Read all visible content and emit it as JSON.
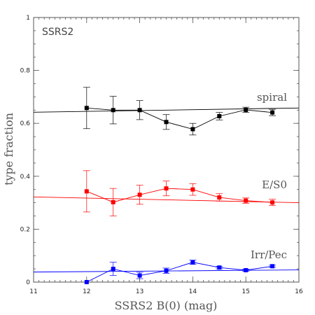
{
  "chart_data": {
    "type": "scatter",
    "panel_label": "SSRS2",
    "xlabel": "SSRS2 B(0) (mag)",
    "ylabel": "type fraction",
    "xlim": [
      11,
      16
    ],
    "ylim": [
      0,
      1
    ],
    "x_ticks": [
      11,
      12,
      13,
      14,
      15,
      16
    ],
    "x_tick_labels": [
      "11",
      "12",
      "13",
      "14",
      "15",
      "16"
    ],
    "y_ticks": [
      0,
      0.2,
      0.4,
      0.6,
      0.8,
      1
    ],
    "y_tick_labels": [
      "0",
      "0.2",
      "0.4",
      "0.6",
      "0.8",
      "1"
    ],
    "x_minor_step": 0.1,
    "y_minor_step": 0.05,
    "grid": false,
    "series": [
      {
        "name": "spiral",
        "color": "#000000",
        "x": [
          12,
          12.5,
          13,
          13.5,
          14,
          14.5,
          15,
          15.5
        ],
        "y": [
          0.658,
          0.65,
          0.65,
          0.605,
          0.578,
          0.627,
          0.651,
          0.641
        ],
        "yerr": [
          0.078,
          0.052,
          0.036,
          0.028,
          0.022,
          0.014,
          0.01,
          0.012
        ],
        "fit": [
          [
            11,
            0.642
          ],
          [
            16,
            0.658
          ]
        ]
      },
      {
        "name": "E/S0",
        "color": "#ff0000",
        "x": [
          12,
          12.5,
          13,
          13.5,
          14,
          14.5,
          15,
          15.5
        ],
        "y": [
          0.343,
          0.302,
          0.33,
          0.354,
          0.35,
          0.32,
          0.308,
          0.301
        ],
        "yerr": [
          0.078,
          0.052,
          0.036,
          0.028,
          0.022,
          0.014,
          0.01,
          0.012
        ],
        "fit": [
          [
            11,
            0.322
          ],
          [
            16,
            0.3
          ]
        ]
      },
      {
        "name": "Irr/Pec",
        "color": "#0000ff",
        "x": [
          12,
          12.5,
          13,
          13.5,
          14,
          14.5,
          15,
          15.5
        ],
        "y": [
          0.0,
          0.05,
          0.025,
          0.043,
          0.075,
          0.055,
          0.045,
          0.06
        ],
        "yerr": [
          0.0,
          0.025,
          0.012,
          0.01,
          0.008,
          0.005,
          0.004,
          0.004
        ],
        "fit": [
          [
            11,
            0.038
          ],
          [
            16,
            0.046
          ]
        ]
      }
    ]
  }
}
